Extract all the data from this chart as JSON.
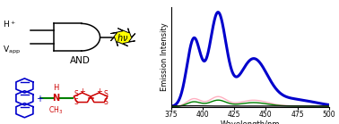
{
  "fig_width": 3.78,
  "fig_height": 1.39,
  "dpi": 100,
  "spectrum": {
    "xlabel": "Wavelength/nm",
    "ylabel": "Emission Intensity",
    "xlim": [
      375,
      500
    ],
    "xticks": [
      375,
      400,
      425,
      450,
      475,
      500
    ],
    "ylim": [
      0,
      1.05
    ],
    "blue_color": "#0000CC",
    "pink_color": "#FFB0C0",
    "green_color": "#008000",
    "black_color": "#111111",
    "blue_lw": 2.2,
    "thin_lw": 1.0
  }
}
